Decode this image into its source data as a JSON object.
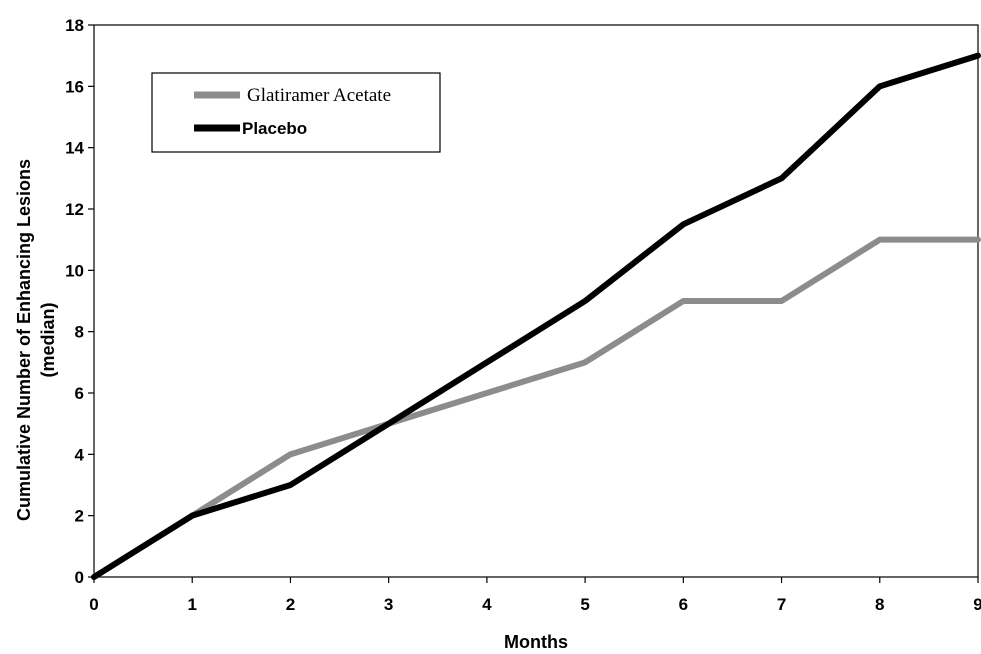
{
  "chart_data": {
    "type": "line",
    "title": "",
    "xlabel": "Months",
    "ylabel_lines": [
      "Cumulative Number of Enhancing Lesions",
      "(median)"
    ],
    "x": [
      0,
      1,
      2,
      3,
      4,
      5,
      6,
      7,
      8,
      9
    ],
    "xlim": [
      0,
      9
    ],
    "ylim": [
      0,
      18
    ],
    "x_ticks": [
      0,
      1,
      2,
      3,
      4,
      5,
      6,
      7,
      8,
      9
    ],
    "y_ticks": [
      0,
      2,
      4,
      6,
      8,
      10,
      12,
      14,
      16,
      18
    ],
    "grid": false,
    "legend_position": "top-left",
    "series": [
      {
        "name": "Glatiramer Acetate",
        "color": "#8c8c8c",
        "values": [
          0,
          2,
          4,
          5,
          6,
          7,
          9,
          9,
          11,
          11
        ]
      },
      {
        "name": "Placebo",
        "color": "#000000",
        "values": [
          0,
          2,
          3,
          5,
          7,
          9,
          11.5,
          13,
          16,
          17
        ]
      }
    ]
  }
}
